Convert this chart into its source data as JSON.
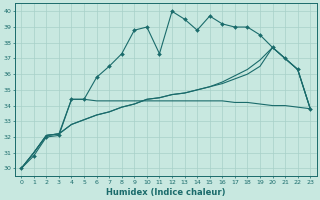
{
  "xlabel": "Humidex (Indice chaleur)",
  "bg_color": "#c8e8e0",
  "line_color": "#1a6b6b",
  "grid_color": "#a8d0c8",
  "xlim": [
    -0.5,
    23.5
  ],
  "ylim": [
    29.5,
    40.5
  ],
  "yticks": [
    30,
    31,
    32,
    33,
    34,
    35,
    36,
    37,
    38,
    39,
    40
  ],
  "xticks": [
    0,
    1,
    2,
    3,
    4,
    5,
    6,
    7,
    8,
    9,
    10,
    11,
    12,
    13,
    14,
    15,
    16,
    17,
    18,
    19,
    20,
    21,
    22,
    23
  ],
  "x": [
    0,
    1,
    2,
    3,
    4,
    5,
    6,
    7,
    8,
    9,
    10,
    11,
    12,
    13,
    14,
    15,
    16,
    17,
    18,
    19,
    20,
    21,
    22,
    23
  ],
  "series1": [
    30.0,
    30.8,
    32.0,
    32.1,
    34.4,
    34.4,
    35.8,
    36.5,
    37.3,
    38.8,
    39.0,
    37.3,
    40.0,
    39.5,
    38.8,
    39.7,
    39.2,
    39.0,
    39.0,
    38.5,
    37.7,
    37.0,
    36.3,
    33.8
  ],
  "series2": [
    30.0,
    31.0,
    32.1,
    32.2,
    34.4,
    34.4,
    34.3,
    34.3,
    34.3,
    34.3,
    34.3,
    34.3,
    34.3,
    34.3,
    34.3,
    34.3,
    34.3,
    34.2,
    34.2,
    34.1,
    34.0,
    34.0,
    33.9,
    33.8
  ],
  "series3": [
    30.0,
    31.0,
    32.1,
    32.2,
    32.8,
    33.1,
    33.4,
    33.6,
    33.9,
    34.1,
    34.4,
    34.5,
    34.7,
    34.8,
    35.0,
    35.2,
    35.4,
    35.7,
    36.0,
    36.5,
    37.7,
    37.0,
    36.3,
    33.8
  ],
  "series4": [
    30.0,
    31.0,
    32.1,
    32.2,
    32.8,
    33.1,
    33.4,
    33.6,
    33.9,
    34.1,
    34.4,
    34.5,
    34.7,
    34.8,
    35.0,
    35.2,
    35.5,
    35.9,
    36.3,
    36.9,
    37.7,
    37.0,
    36.3,
    33.8
  ]
}
